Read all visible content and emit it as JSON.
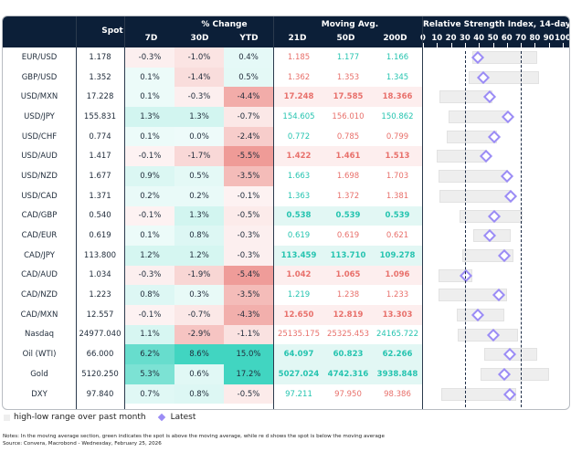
{
  "header": {
    "spot": "Spot",
    "pct_change": "% Change",
    "pct_cols": [
      "7D",
      "30D",
      "YTD"
    ],
    "moving_avg": "Moving Avg.",
    "ma_cols": [
      "21D",
      "50D",
      "200D"
    ],
    "rsi_title": "Relative Strength Index, 14-day",
    "rsi_ticks": [
      "0",
      "10",
      "20",
      "30",
      "40",
      "50",
      "60",
      "70",
      "80",
      "90",
      "100"
    ]
  },
  "colors": {
    "header_bg": "#0c1f38",
    "green_text": "#26c4b0",
    "red_text": "#e8706b",
    "diamond": "#9b8cf5",
    "range_bar": "#eeeeee"
  },
  "rows": [
    {
      "name": "EUR/USD",
      "spot": "1.178",
      "d7": "-0.3%",
      "d30": "-1.0%",
      "ytd": "0.4%",
      "ma21": "1.185",
      "ma50": "1.177",
      "ma200": "1.166",
      "ma_dir": [
        "down",
        "up",
        "up"
      ],
      "rsi": {
        "low": 35,
        "high": 82,
        "latest": 39
      }
    },
    {
      "name": "GBP/USD",
      "spot": "1.352",
      "d7": "0.1%",
      "d30": "-1.4%",
      "ytd": "0.5%",
      "ma21": "1.362",
      "ma50": "1.353",
      "ma200": "1.345",
      "ma_dir": [
        "down",
        "down",
        "up"
      ],
      "rsi": {
        "low": 33,
        "high": 83,
        "latest": 43
      }
    },
    {
      "name": "USD/MXN",
      "spot": "17.228",
      "d7": "0.1%",
      "d30": "-0.3%",
      "ytd": "-4.4%",
      "ma21": "17.248",
      "ma50": "17.585",
      "ma200": "18.366",
      "ma_dir": [
        "down",
        "down",
        "down"
      ],
      "rsi": {
        "low": 12,
        "high": 50,
        "latest": 48
      }
    },
    {
      "name": "USD/JPY",
      "spot": "155.831",
      "d7": "1.3%",
      "d30": "1.3%",
      "ytd": "-0.7%",
      "ma21": "154.605",
      "ma50": "156.010",
      "ma200": "150.862",
      "ma_dir": [
        "up",
        "down",
        "up"
      ],
      "rsi": {
        "low": 18,
        "high": 61,
        "latest": 61
      }
    },
    {
      "name": "USD/CHF",
      "spot": "0.774",
      "d7": "0.1%",
      "d30": "0.0%",
      "ytd": "-2.4%",
      "ma21": "0.772",
      "ma50": "0.785",
      "ma200": "0.799",
      "ma_dir": [
        "up",
        "down",
        "down"
      ],
      "rsi": {
        "low": 17,
        "high": 53,
        "latest": 51
      }
    },
    {
      "name": "USD/AUD",
      "spot": "1.417",
      "d7": "-0.1%",
      "d30": "-1.7%",
      "ytd": "-5.5%",
      "ma21": "1.422",
      "ma50": "1.461",
      "ma200": "1.513",
      "ma_dir": [
        "down",
        "down",
        "down"
      ],
      "rsi": {
        "low": 10,
        "high": 46,
        "latest": 45
      }
    },
    {
      "name": "USD/NZD",
      "spot": "1.677",
      "d7": "0.9%",
      "d30": "0.5%",
      "ytd": "-3.5%",
      "ma21": "1.663",
      "ma50": "1.698",
      "ma200": "1.703",
      "ma_dir": [
        "up",
        "down",
        "down"
      ],
      "rsi": {
        "low": 11,
        "high": 61,
        "latest": 60
      }
    },
    {
      "name": "USD/CAD",
      "spot": "1.371",
      "d7": "0.2%",
      "d30": "0.2%",
      "ytd": "-0.1%",
      "ma21": "1.363",
      "ma50": "1.372",
      "ma200": "1.381",
      "ma_dir": [
        "up",
        "down",
        "down"
      ],
      "rsi": {
        "low": 12,
        "high": 63,
        "latest": 63
      }
    },
    {
      "name": "CAD/GBP",
      "spot": "0.540",
      "d7": "-0.1%",
      "d30": "1.3%",
      "ytd": "-0.5%",
      "ma21": "0.538",
      "ma50": "0.539",
      "ma200": "0.539",
      "ma_dir": [
        "up",
        "up",
        "up"
      ],
      "rsi": {
        "low": 26,
        "high": 71,
        "latest": 51
      }
    },
    {
      "name": "CAD/EUR",
      "spot": "0.619",
      "d7": "0.1%",
      "d30": "0.8%",
      "ytd": "-0.3%",
      "ma21": "0.619",
      "ma50": "0.619",
      "ma200": "0.621",
      "ma_dir": [
        "up",
        "down",
        "down"
      ],
      "rsi": {
        "low": 36,
        "high": 63,
        "latest": 48
      }
    },
    {
      "name": "CAD/JPY",
      "spot": "113.800",
      "d7": "1.2%",
      "d30": "1.2%",
      "ytd": "-0.3%",
      "ma21": "113.459",
      "ma50": "113.710",
      "ma200": "109.278",
      "ma_dir": [
        "up",
        "up",
        "up"
      ],
      "rsi": {
        "low": 28,
        "high": 65,
        "latest": 58
      }
    },
    {
      "name": "CAD/AUD",
      "spot": "1.034",
      "d7": "-0.3%",
      "d30": "-1.9%",
      "ytd": "-5.4%",
      "ma21": "1.042",
      "ma50": "1.065",
      "ma200": "1.096",
      "ma_dir": [
        "down",
        "down",
        "down"
      ],
      "rsi": {
        "low": 11,
        "high": 35,
        "latest": 31
      }
    },
    {
      "name": "CAD/NZD",
      "spot": "1.223",
      "d7": "0.8%",
      "d30": "0.3%",
      "ytd": "-3.5%",
      "ma21": "1.219",
      "ma50": "1.238",
      "ma200": "1.233",
      "ma_dir": [
        "up",
        "down",
        "down"
      ],
      "rsi": {
        "low": 11,
        "high": 60,
        "latest": 54
      }
    },
    {
      "name": "CAD/MXN",
      "spot": "12.557",
      "d7": "-0.1%",
      "d30": "-0.7%",
      "ytd": "-4.3%",
      "ma21": "12.650",
      "ma50": "12.819",
      "ma200": "13.303",
      "ma_dir": [
        "down",
        "down",
        "down"
      ],
      "rsi": {
        "low": 24,
        "high": 58,
        "latest": 39
      }
    },
    {
      "name": "Nasdaq",
      "spot": "24977.040",
      "d7": "1.1%",
      "d30": "-2.9%",
      "ytd": "-1.1%",
      "ma21": "25135.175",
      "ma50": "25325.453",
      "ma200": "24165.722",
      "ma_dir": [
        "down",
        "down",
        "up"
      ],
      "rsi": {
        "low": 25,
        "high": 68,
        "latest": 50
      }
    },
    {
      "name": "Oil (WTI)",
      "spot": "66.000",
      "d7": "6.2%",
      "d30": "8.6%",
      "ytd": "15.0%",
      "ma21": "64.097",
      "ma50": "60.823",
      "ma200": "62.266",
      "ma_dir": [
        "up",
        "up",
        "up"
      ],
      "rsi": {
        "low": 44,
        "high": 82,
        "latest": 62
      }
    },
    {
      "name": "Gold",
      "spot": "5120.250",
      "d7": "5.3%",
      "d30": "0.6%",
      "ytd": "17.2%",
      "ma21": "5027.024",
      "ma50": "4742.316",
      "ma200": "3938.848",
      "ma_dir": [
        "up",
        "up",
        "up"
      ],
      "rsi": {
        "low": 41,
        "high": 90,
        "latest": 58
      }
    },
    {
      "name": "DXY",
      "spot": "97.840",
      "d7": "0.7%",
      "d30": "0.8%",
      "ytd": "-0.5%",
      "ma21": "97.211",
      "ma50": "97.950",
      "ma200": "98.386",
      "ma_dir": [
        "up",
        "down",
        "down"
      ],
      "rsi": {
        "low": 13,
        "high": 67,
        "latest": 62
      }
    }
  ],
  "rsi_reference_lines": [
    30,
    70
  ],
  "legend": {
    "range_label": "high-low range over past month",
    "latest_label": "Latest"
  },
  "notes": {
    "line1": "Notes: In the moving average section, green indicates the spot is above the moving average, while re   d shows the spot is below  the moving average",
    "line2": "Source: Convera, Macrobond - Wednesday, February 25, 2026"
  }
}
